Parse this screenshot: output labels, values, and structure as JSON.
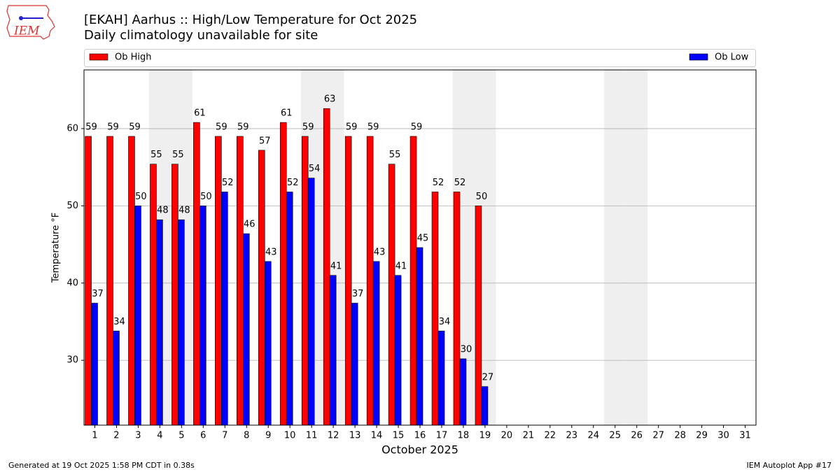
{
  "logo_text": "IEM",
  "chart_data": {
    "type": "bar",
    "title": "[EKAH] Aarhus :: High/Low Temperature for Oct 2025",
    "subtitle": "Daily climatology unavailable for site",
    "x_label": "October 2025",
    "y_label": "Temperature °F",
    "footer_left": "Generated at 19 Oct 2025 1:58 PM CDT in 0.38s",
    "footer_right": "IEM Autoplot App #17",
    "categories": [
      "1",
      "2",
      "3",
      "4",
      "5",
      "6",
      "7",
      "8",
      "9",
      "10",
      "11",
      "12",
      "13",
      "14",
      "15",
      "16",
      "17",
      "18",
      "19",
      "20",
      "21",
      "22",
      "23",
      "24",
      "25",
      "26",
      "27",
      "28",
      "29",
      "30",
      "31"
    ],
    "shaded_days": [
      4,
      5,
      11,
      12,
      18,
      19,
      25,
      26
    ],
    "series": [
      {
        "name": "Ob High",
        "color": "#ff0000",
        "values": [
          59.0,
          59.0,
          59.0,
          55.4,
          55.4,
          60.8,
          59.0,
          59.0,
          57.2,
          60.8,
          59.0,
          62.6,
          59.0,
          59.0,
          55.4,
          59.0,
          51.8,
          51.8,
          50.0,
          null,
          null,
          null,
          null,
          null,
          null,
          null,
          null,
          null,
          null,
          null,
          null
        ],
        "value_labels": [
          "59",
          "59",
          "59",
          "55",
          "55",
          "61",
          "59",
          "59",
          "57",
          "61",
          "59",
          "63",
          "59",
          "59",
          "55",
          "59",
          "52",
          "52",
          "50",
          null,
          null,
          null,
          null,
          null,
          null,
          null,
          null,
          null,
          null,
          null,
          null
        ]
      },
      {
        "name": "Ob Low",
        "color": "#0000ff",
        "values": [
          37.4,
          33.8,
          50.0,
          48.2,
          48.2,
          50.0,
          51.8,
          46.4,
          42.8,
          51.8,
          53.6,
          41.0,
          37.4,
          42.8,
          41.0,
          44.6,
          33.8,
          30.2,
          26.6,
          null,
          null,
          null,
          null,
          null,
          null,
          null,
          null,
          null,
          null,
          null,
          null
        ],
        "value_labels": [
          "37",
          "34",
          "50",
          "48",
          "48",
          "50",
          "52",
          "46",
          "43",
          "52",
          "54",
          "41",
          "37",
          "43",
          "41",
          "45",
          "34",
          "30",
          "27",
          null,
          null,
          null,
          null,
          null,
          null,
          null,
          null,
          null,
          null,
          null,
          null
        ]
      }
    ],
    "ylim": [
      21.6,
      67.6
    ],
    "yticks": [
      30,
      40,
      50,
      60
    ],
    "grid": true
  }
}
